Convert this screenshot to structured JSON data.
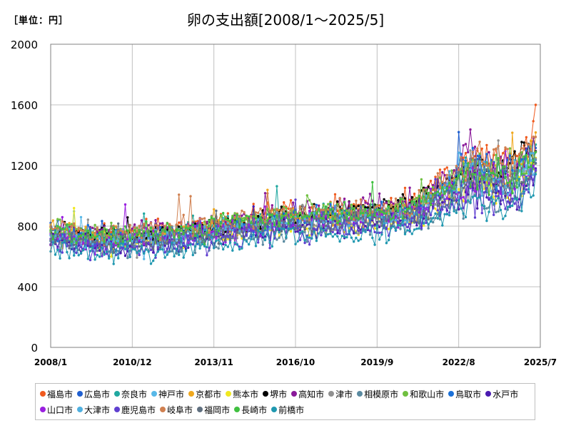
{
  "header": {
    "unit_label": "［単位：円］",
    "title": "卵の支出額[2008/1～2025/5]"
  },
  "chart_data": {
    "type": "line",
    "title": "卵の支出額[2008/1～2025/5]",
    "unit": "［単位：円］",
    "ylim": [
      0,
      2000
    ],
    "yticks": [
      "0",
      "400",
      "800",
      "1200",
      "1600",
      "2000"
    ],
    "xlim": [
      "2008/1",
      "2025/7"
    ],
    "xticks": [
      "2008/1",
      "2010/12",
      "2013/11",
      "2016/10",
      "2019/9",
      "2022/8",
      "2025/7"
    ],
    "grid": true,
    "legend_position": "bottom",
    "series": [
      {
        "name": "福島市",
        "color": "#f05a1e",
        "anchors": [
          [
            2008,
            760
          ],
          [
            2010,
            740
          ],
          [
            2013,
            800
          ],
          [
            2016,
            880
          ],
          [
            2019,
            900
          ],
          [
            2021,
            950
          ],
          [
            2023,
            1250
          ],
          [
            2024.5,
            1230
          ],
          [
            2025.33,
            1450
          ]
        ]
      },
      {
        "name": "広島市",
        "color": "#1f5fd0",
        "anchors": [
          [
            2008,
            770
          ],
          [
            2010,
            700
          ],
          [
            2013,
            730
          ],
          [
            2016,
            830
          ],
          [
            2019,
            880
          ],
          [
            2021,
            900
          ],
          [
            2023,
            1180
          ],
          [
            2024.5,
            1100
          ],
          [
            2025.33,
            1300
          ]
        ]
      },
      {
        "name": "奈良市",
        "color": "#20a8a0",
        "anchors": [
          [
            2008,
            740
          ],
          [
            2010,
            720
          ],
          [
            2013,
            780
          ],
          [
            2016,
            870
          ],
          [
            2019,
            860
          ],
          [
            2021,
            920
          ],
          [
            2023,
            1150
          ],
          [
            2024.5,
            1120
          ],
          [
            2025.33,
            1250
          ]
        ]
      },
      {
        "name": "神戸市",
        "color": "#58b8e8",
        "anchors": [
          [
            2008,
            750
          ],
          [
            2010,
            700
          ],
          [
            2013,
            720
          ],
          [
            2016,
            820
          ],
          [
            2019,
            840
          ],
          [
            2021,
            880
          ],
          [
            2023,
            1100
          ],
          [
            2024.5,
            1050
          ],
          [
            2025.33,
            1200
          ]
        ]
      },
      {
        "name": "京都市",
        "color": "#f0a81e",
        "anchors": [
          [
            2008,
            780
          ],
          [
            2010,
            730
          ],
          [
            2013,
            760
          ],
          [
            2016,
            860
          ],
          [
            2019,
            880
          ],
          [
            2021,
            900
          ],
          [
            2023,
            1150
          ],
          [
            2024.5,
            1120
          ],
          [
            2025.33,
            1280
          ]
        ]
      },
      {
        "name": "熊本市",
        "color": "#f0e820",
        "anchors": [
          [
            2008,
            720
          ],
          [
            2010,
            680
          ],
          [
            2013,
            720
          ],
          [
            2016,
            800
          ],
          [
            2019,
            780
          ],
          [
            2021,
            850
          ],
          [
            2023,
            1080
          ],
          [
            2024.5,
            1060
          ],
          [
            2025.33,
            1200
          ]
        ]
      },
      {
        "name": "堺市",
        "color": "#000000",
        "anchors": [
          [
            2008,
            760
          ],
          [
            2010,
            730
          ],
          [
            2013,
            780
          ],
          [
            2016,
            850
          ],
          [
            2019,
            900
          ],
          [
            2021,
            950
          ],
          [
            2023,
            1180
          ],
          [
            2024.5,
            1200
          ],
          [
            2025.33,
            1330
          ]
        ]
      },
      {
        "name": "高知市",
        "color": "#8a1a9a",
        "anchors": [
          [
            2008,
            740
          ],
          [
            2010,
            760
          ],
          [
            2013,
            800
          ],
          [
            2016,
            880
          ],
          [
            2019,
            920
          ],
          [
            2021,
            960
          ],
          [
            2023,
            1250
          ],
          [
            2024.5,
            1180
          ],
          [
            2025.33,
            1300
          ]
        ]
      },
      {
        "name": "津市",
        "color": "#909090",
        "anchors": [
          [
            2008,
            730
          ],
          [
            2010,
            700
          ],
          [
            2013,
            740
          ],
          [
            2016,
            820
          ],
          [
            2019,
            840
          ],
          [
            2021,
            880
          ],
          [
            2023,
            1100
          ],
          [
            2024.5,
            1080
          ],
          [
            2025.33,
            1220
          ]
        ]
      },
      {
        "name": "相模原市",
        "color": "#5a8aa0",
        "anchors": [
          [
            2008,
            700
          ],
          [
            2010,
            650
          ],
          [
            2013,
            680
          ],
          [
            2016,
            760
          ],
          [
            2019,
            780
          ],
          [
            2021,
            820
          ],
          [
            2023,
            1000
          ],
          [
            2024.5,
            980
          ],
          [
            2025.33,
            1150
          ]
        ]
      },
      {
        "name": "和歌山市",
        "color": "#70c040",
        "anchors": [
          [
            2008,
            780
          ],
          [
            2010,
            740
          ],
          [
            2013,
            780
          ],
          [
            2016,
            880
          ],
          [
            2019,
            900
          ],
          [
            2021,
            940
          ],
          [
            2023,
            1200
          ],
          [
            2024.5,
            1150
          ],
          [
            2025.33,
            1280
          ]
        ]
      },
      {
        "name": "鳥取市",
        "color": "#1a70d8",
        "anchors": [
          [
            2008,
            750
          ],
          [
            2010,
            720
          ],
          [
            2013,
            760
          ],
          [
            2016,
            850
          ],
          [
            2019,
            880
          ],
          [
            2021,
            920
          ],
          [
            2023,
            1220
          ],
          [
            2024.5,
            1150
          ],
          [
            2025.33,
            1250
          ]
        ]
      },
      {
        "name": "水戸市",
        "color": "#4a1ab0",
        "anchors": [
          [
            2008,
            690
          ],
          [
            2010,
            660
          ],
          [
            2013,
            700
          ],
          [
            2016,
            780
          ],
          [
            2019,
            800
          ],
          [
            2021,
            840
          ],
          [
            2023,
            1050
          ],
          [
            2024.5,
            1000
          ],
          [
            2025.33,
            1180
          ]
        ]
      },
      {
        "name": "山口市",
        "color": "#9a20e0",
        "anchors": [
          [
            2008,
            720
          ],
          [
            2010,
            690
          ],
          [
            2013,
            730
          ],
          [
            2016,
            820
          ],
          [
            2019,
            850
          ],
          [
            2021,
            880
          ],
          [
            2023,
            1120
          ],
          [
            2024.5,
            1080
          ],
          [
            2025.33,
            1230
          ]
        ]
      },
      {
        "name": "大津市",
        "color": "#50b0e0",
        "anchors": [
          [
            2008,
            740
          ],
          [
            2010,
            700
          ],
          [
            2013,
            740
          ],
          [
            2016,
            830
          ],
          [
            2019,
            860
          ],
          [
            2021,
            900
          ],
          [
            2023,
            1130
          ],
          [
            2024.5,
            1100
          ],
          [
            2025.33,
            1260
          ]
        ]
      },
      {
        "name": "鹿児島市",
        "color": "#6040d0",
        "anchors": [
          [
            2008,
            680
          ],
          [
            2010,
            640
          ],
          [
            2013,
            680
          ],
          [
            2016,
            760
          ],
          [
            2019,
            780
          ],
          [
            2021,
            820
          ],
          [
            2023,
            1000
          ],
          [
            2024.5,
            960
          ],
          [
            2025.33,
            1120
          ]
        ]
      },
      {
        "name": "岐阜市",
        "color": "#d08050",
        "anchors": [
          [
            2008,
            790
          ],
          [
            2010,
            760
          ],
          [
            2013,
            800
          ],
          [
            2016,
            880
          ],
          [
            2019,
            900
          ],
          [
            2021,
            940
          ],
          [
            2023,
            1220
          ],
          [
            2024.5,
            1250
          ],
          [
            2025.33,
            1400
          ]
        ]
      },
      {
        "name": "福岡市",
        "color": "#607080",
        "anchors": [
          [
            2008,
            730
          ],
          [
            2010,
            690
          ],
          [
            2013,
            730
          ],
          [
            2016,
            810
          ],
          [
            2019,
            830
          ],
          [
            2021,
            870
          ],
          [
            2023,
            1100
          ],
          [
            2024.5,
            1060
          ],
          [
            2025.33,
            1200
          ]
        ]
      },
      {
        "name": "長崎市",
        "color": "#40c040",
        "anchors": [
          [
            2008,
            760
          ],
          [
            2010,
            730
          ],
          [
            2013,
            770
          ],
          [
            2016,
            860
          ],
          [
            2019,
            880
          ],
          [
            2021,
            920
          ],
          [
            2023,
            1150
          ],
          [
            2024.5,
            1120
          ],
          [
            2025.33,
            1270
          ]
        ]
      },
      {
        "name": "前橋市",
        "color": "#2098b0",
        "anchors": [
          [
            2008,
            650
          ],
          [
            2010,
            620
          ],
          [
            2013,
            650
          ],
          [
            2016,
            740
          ],
          [
            2019,
            740
          ],
          [
            2021,
            780
          ],
          [
            2023,
            950
          ],
          [
            2024.5,
            920
          ],
          [
            2025.33,
            1080
          ]
        ]
      }
    ]
  }
}
